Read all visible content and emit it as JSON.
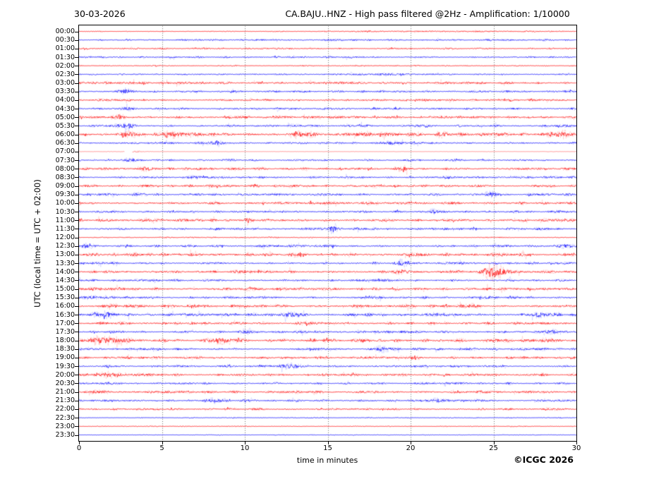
{
  "header": {
    "date": "30-03-2026",
    "title": "CA.BAJU..HNZ - High pass filtered @2Hz - Amplification: 1/10000"
  },
  "footer": {
    "xlabel": "time in minutes",
    "copyright": "©ICGC 2026"
  },
  "chart_data": {
    "type": "line",
    "subtype": "helicorder-seismogram",
    "date": "30-03-2026",
    "title": "CA.BAJU..HNZ - High pass filtered @2Hz - Amplification: 1/10000",
    "xlabel": "time in minutes",
    "ylabel": "UTC (local time = UTC + 02:00)",
    "xlim": [
      0,
      30
    ],
    "x_ticks": [
      0,
      5,
      10,
      15,
      20,
      25,
      30
    ],
    "gridlines_x": [
      5,
      10,
      15,
      20,
      25
    ],
    "grid_style": "dotted",
    "grid_color": "#444444",
    "frame_color": "#000000",
    "background": "#ffffff",
    "trace_colors": {
      "hour": "#ff0000",
      "half_hour": "#0000ff"
    },
    "minutes_per_row": 30,
    "traces": [
      {
        "t": "00:00",
        "c": "r",
        "a": 0.35,
        "e": [
          [
            22,
            0.45,
            5
          ]
        ]
      },
      {
        "t": "00:30",
        "c": "b",
        "a": 0.8
      },
      {
        "t": "01:00",
        "c": "r",
        "a": 0.75
      },
      {
        "t": "01:30",
        "c": "b",
        "a": 0.8
      },
      {
        "t": "02:00",
        "c": "r",
        "a": 0.55
      },
      {
        "t": "02:30",
        "c": "b",
        "a": 0.7,
        "e": [
          [
            18.5,
            0.9,
            1.0
          ]
        ]
      },
      {
        "t": "03:00",
        "c": "r",
        "a": 1.1
      },
      {
        "t": "03:30",
        "c": "b",
        "a": 0.95,
        "e": [
          [
            2.8,
            1.8,
            0.3
          ],
          [
            9.3,
            1.2,
            0.2
          ]
        ]
      },
      {
        "t": "04:00",
        "c": "r",
        "a": 1.0
      },
      {
        "t": "04:30",
        "c": "b",
        "a": 0.95,
        "e": [
          [
            2.9,
            1.8,
            0.3
          ]
        ]
      },
      {
        "t": "05:00",
        "c": "r",
        "a": 1.2,
        "e": [
          [
            2.2,
            1.4,
            0.4
          ]
        ]
      },
      {
        "t": "05:30",
        "c": "b",
        "a": 1.05,
        "e": [
          [
            2.9,
            2.2,
            0.4
          ]
        ]
      },
      {
        "t": "06:00",
        "c": "r",
        "a": 1.5,
        "e": [
          [
            3,
            1.5,
            0.4
          ],
          [
            6,
            1.8,
            0.5
          ],
          [
            13.5,
            1.4,
            0.4
          ],
          [
            17,
            2.0,
            0.3
          ],
          [
            22,
            1.5,
            0.3
          ],
          [
            28.8,
            2.2,
            0.5
          ]
        ]
      },
      {
        "t": "06:30",
        "c": "b",
        "a": 1.0,
        "e": [
          [
            8.2,
            1.4,
            0.3
          ],
          [
            19,
            1.2,
            0.3
          ]
        ]
      },
      {
        "t": "07:00",
        "c": "r",
        "a": 0.22,
        "l": true,
        "e": [
          [
            3.5,
            1.0,
            0.25
          ]
        ],
        "g": [
          [
            2.75,
            3.2
          ]
        ]
      },
      {
        "t": "07:30",
        "c": "b",
        "a": 0.9,
        "e": [
          [
            2.9,
            1.7,
            0.25
          ]
        ]
      },
      {
        "t": "08:00",
        "c": "r",
        "a": 1.15,
        "e": [
          [
            4.2,
            1.5,
            0.4
          ],
          [
            19.6,
            1.7,
            0.3
          ]
        ]
      },
      {
        "t": "08:30",
        "c": "b",
        "a": 1.0,
        "e": [
          [
            7,
            1.1,
            0.3
          ]
        ]
      },
      {
        "t": "09:00",
        "c": "r",
        "a": 1.2
      },
      {
        "t": "09:30",
        "c": "b",
        "a": 1.05,
        "e": [
          [
            3.5,
            1.4,
            0.3
          ],
          [
            24.8,
            2.0,
            0.3
          ]
        ]
      },
      {
        "t": "10:00",
        "c": "r",
        "a": 1.25
      },
      {
        "t": "10:30",
        "c": "b",
        "a": 1.05,
        "e": [
          [
            21.4,
            2.0,
            0.25
          ]
        ]
      },
      {
        "t": "11:00",
        "c": "r",
        "a": 1.25,
        "e": [
          [
            10.2,
            1.7,
            0.3
          ]
        ]
      },
      {
        "t": "11:30",
        "c": "b",
        "a": 1.05,
        "e": [
          [
            15.3,
            1.9,
            0.25
          ]
        ]
      },
      {
        "t": "12:00",
        "c": "r",
        "a": 0.5
      },
      {
        "t": "12:30",
        "c": "b",
        "a": 1.15,
        "e": [
          [
            0.5,
            1.3,
            0.3
          ],
          [
            29.2,
            1.5,
            0.3
          ]
        ]
      },
      {
        "t": "13:00",
        "c": "r",
        "a": 1.5
      },
      {
        "t": "13:30",
        "c": "b",
        "a": 1.15,
        "e": [
          [
            19.4,
            2.4,
            0.3
          ]
        ]
      },
      {
        "t": "14:00",
        "c": "r",
        "a": 1.25,
        "e": [
          [
            19.6,
            1.7,
            0.3
          ],
          [
            24.9,
            5.5,
            0.45
          ],
          [
            25.7,
            1.2,
            0.9
          ]
        ]
      },
      {
        "t": "14:30",
        "c": "b",
        "a": 1.0
      },
      {
        "t": "15:00",
        "c": "r",
        "a": 1.3
      },
      {
        "t": "15:30",
        "c": "b",
        "a": 1.15,
        "e": [
          [
            0.8,
            1.4,
            0.4
          ]
        ]
      },
      {
        "t": "16:00",
        "c": "r",
        "a": 1.35,
        "e": [
          [
            23.8,
            1.7,
            0.3
          ]
        ]
      },
      {
        "t": "16:30",
        "c": "b",
        "a": 1.35,
        "e": [
          [
            1.5,
            1.7,
            0.5
          ],
          [
            12.8,
            2.4,
            0.4
          ],
          [
            27.6,
            1.7,
            0.3
          ]
        ]
      },
      {
        "t": "17:00",
        "c": "r",
        "a": 1.25,
        "e": [
          [
            14,
            1.5,
            0.3
          ]
        ]
      },
      {
        "t": "17:30",
        "c": "b",
        "a": 1.1,
        "e": [
          [
            10,
            1.7,
            0.25
          ],
          [
            28.5,
            1.4,
            0.3
          ]
        ]
      },
      {
        "t": "18:00",
        "c": "r",
        "a": 1.5,
        "e": [
          [
            1.6,
            2.4,
            0.8
          ],
          [
            8.4,
            1.7,
            0.4
          ]
        ]
      },
      {
        "t": "18:30",
        "c": "b",
        "a": 1.1,
        "e": [
          [
            18.3,
            1.9,
            0.4
          ]
        ]
      },
      {
        "t": "19:00",
        "c": "r",
        "a": 1.2
      },
      {
        "t": "19:30",
        "c": "b",
        "a": 1.0,
        "e": [
          [
            12.7,
            2.1,
            0.5
          ]
        ]
      },
      {
        "t": "20:00",
        "c": "r",
        "a": 1.2,
        "e": [
          [
            1.8,
            2.2,
            0.6
          ]
        ]
      },
      {
        "t": "20:30",
        "c": "b",
        "a": 1.0
      },
      {
        "t": "21:00",
        "c": "r",
        "a": 1.2
      },
      {
        "t": "21:30",
        "c": "b",
        "a": 1.0,
        "e": [
          [
            8.3,
            1.7,
            0.4
          ],
          [
            21.6,
            1.4,
            0.3
          ]
        ]
      },
      {
        "t": "22:00",
        "c": "r",
        "a": 0.95
      },
      {
        "t": "22:30",
        "c": "b",
        "a": 0.45
      },
      {
        "t": "23:00",
        "c": "r",
        "a": 0.4
      },
      {
        "t": "23:30",
        "c": "b",
        "a": 0.3
      }
    ]
  }
}
